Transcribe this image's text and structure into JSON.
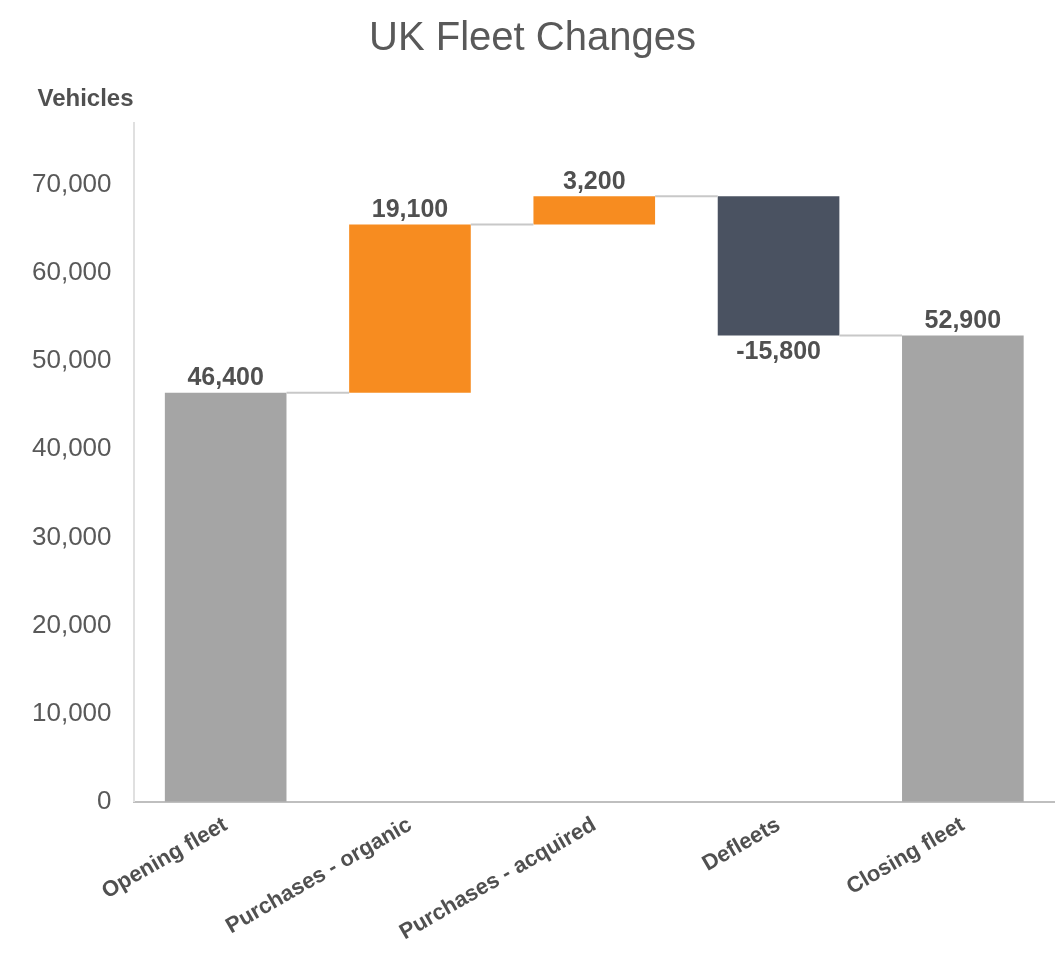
{
  "chart_data": {
    "type": "bar",
    "title": "UK Fleet Changes",
    "ylabel": "Vehicles",
    "categories": [
      "Opening fleet",
      "Purchases - organic",
      "Purchases - acquired",
      "Defleets",
      "Closing fleet"
    ],
    "values": [
      46400,
      19100,
      3200,
      -15800,
      52900
    ],
    "base": [
      0,
      46400,
      65500,
      68700,
      0
    ],
    "colors": [
      "#a5a5a5",
      "#f78c20",
      "#f78c20",
      "#4a5261",
      "#a5a5a5"
    ],
    "value_labels": [
      "46,400",
      "19,100",
      "3,200",
      "-15,800",
      "52,900"
    ],
    "ylim": [
      0,
      77000
    ],
    "yticks": [
      0,
      {
        "value": 10000,
        "label": "10,000"
      },
      {
        "value": 20000,
        "label": "20,000"
      },
      {
        "value": 30000,
        "label": "30,000"
      },
      {
        "value": 40000,
        "label": "40,000"
      },
      {
        "value": 50000,
        "label": "50,000"
      },
      {
        "value": 60000,
        "label": "60,000"
      },
      {
        "value": 70000,
        "label": "70,000"
      }
    ],
    "grid": false,
    "legend": false
  }
}
